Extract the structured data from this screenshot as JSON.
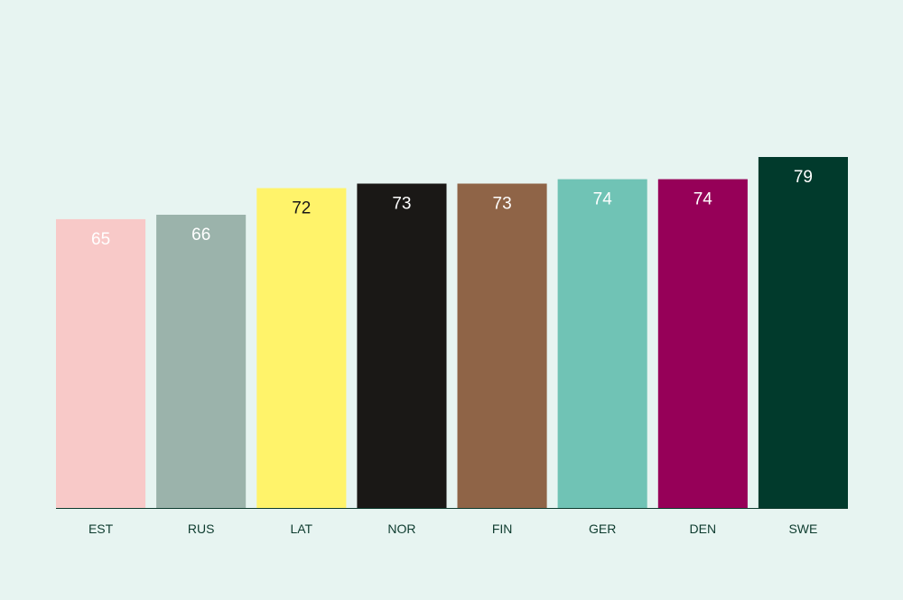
{
  "chart_data": {
    "type": "bar",
    "categories": [
      "EST",
      "RUS",
      "LAT",
      "NOR",
      "FIN",
      "GER",
      "DEN",
      "SWE"
    ],
    "values": [
      65,
      66,
      72,
      73,
      73,
      74,
      74,
      79
    ],
    "data_labels": [
      "65",
      "66",
      "72",
      "73",
      "73",
      "74",
      "74",
      "79"
    ],
    "colors": [
      "#f8c9c8",
      "#9bb3ab",
      "#fff36a",
      "#1a1816",
      "#8f6447",
      "#70c3b5",
      "#960058",
      "#013a2c"
    ],
    "label_colors": [
      "#ffffff",
      "#ffffff",
      "#1a1816",
      "#ffffff",
      "#ffffff",
      "#ffffff",
      "#ffffff",
      "#ffffff"
    ],
    "ylim": [
      0,
      79
    ],
    "grid": false,
    "legend": "none",
    "title": "",
    "xlabel": "",
    "ylabel": ""
  },
  "colors": {
    "background": "#e7f4f1",
    "axis": "#0d3b2e",
    "tick_text": "#0d3b2e"
  }
}
